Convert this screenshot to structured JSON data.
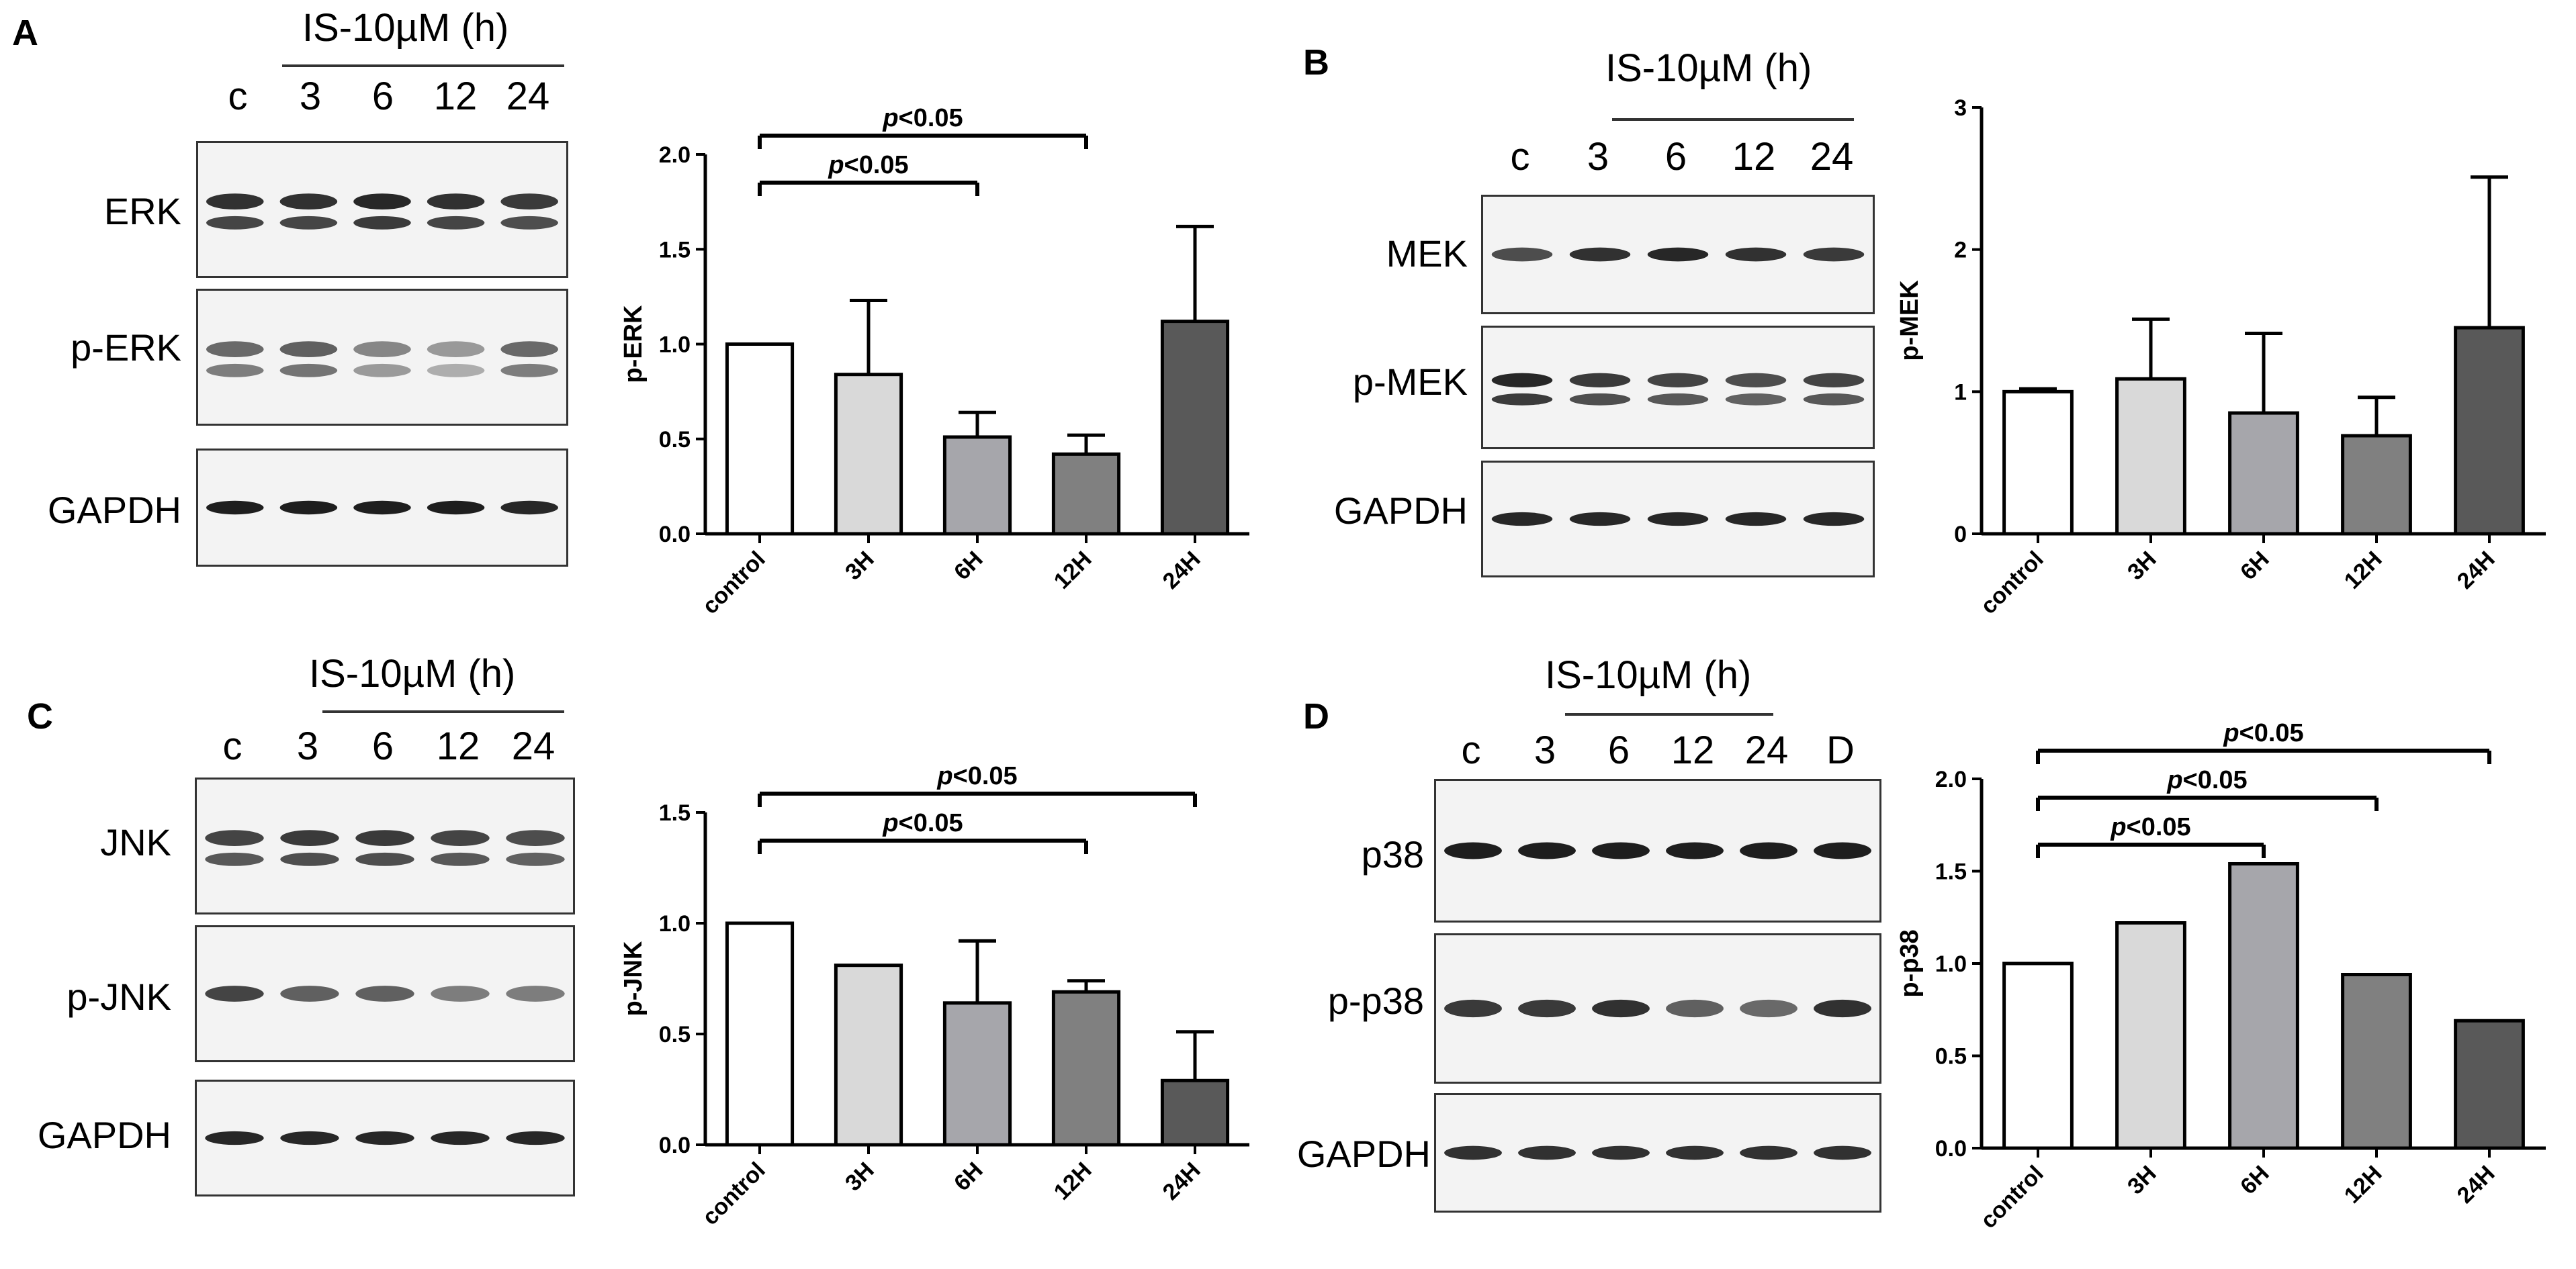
{
  "panels": [
    {
      "id": "A",
      "letter": "A",
      "timepoint_header": "IS-10µM (h)",
      "lanes": [
        "c",
        "3",
        "6",
        "12",
        "24"
      ],
      "blots": [
        {
          "label": "ERK",
          "band_intensity": [
            0.85,
            0.85,
            0.9,
            0.85,
            0.8
          ],
          "doublet": true
        },
        {
          "label": "p-ERK",
          "band_intensity": [
            0.55,
            0.6,
            0.4,
            0.3,
            0.55
          ],
          "doublet": true
        },
        {
          "label": "GAPDH",
          "band_intensity": [
            0.95,
            0.95,
            0.95,
            0.95,
            0.9
          ],
          "doublet": false
        }
      ]
    },
    {
      "id": "B",
      "letter": "B",
      "timepoint_header": "IS-10µM (h)",
      "lanes": [
        "c",
        "3",
        "6",
        "12",
        "24"
      ],
      "blots": [
        {
          "label": "MEK",
          "band_intensity": [
            0.7,
            0.85,
            0.9,
            0.85,
            0.8
          ],
          "doublet": false
        },
        {
          "label": "p-MEK",
          "band_intensity": [
            0.9,
            0.8,
            0.75,
            0.7,
            0.75
          ],
          "doublet": true
        },
        {
          "label": "GAPDH",
          "band_intensity": [
            0.9,
            0.9,
            0.9,
            0.9,
            0.9
          ],
          "doublet": false
        }
      ]
    },
    {
      "id": "C",
      "letter": "C",
      "timepoint_header": "IS-10µM (h)",
      "lanes": [
        "c",
        "3",
        "6",
        "12",
        "24"
      ],
      "blots": [
        {
          "label": "JNK",
          "band_intensity": [
            0.75,
            0.8,
            0.8,
            0.75,
            0.7
          ],
          "doublet": true
        },
        {
          "label": "p-JNK",
          "band_intensity": [
            0.75,
            0.6,
            0.6,
            0.45,
            0.45
          ],
          "doublet": false
        },
        {
          "label": "GAPDH",
          "band_intensity": [
            0.9,
            0.9,
            0.9,
            0.9,
            0.9
          ],
          "doublet": false
        }
      ]
    },
    {
      "id": "D",
      "letter": "D",
      "timepoint_header": "IS-10µM (h)",
      "lanes": [
        "c",
        "3",
        "6",
        "12",
        "24",
        "D"
      ],
      "blots": [
        {
          "label": "p38",
          "band_intensity": [
            0.95,
            0.95,
            0.95,
            0.95,
            0.95,
            0.95
          ],
          "doublet": false
        },
        {
          "label": "p-p38",
          "band_intensity": [
            0.8,
            0.8,
            0.85,
            0.6,
            0.55,
            0.85
          ],
          "doublet": false
        },
        {
          "label": "GAPDH",
          "band_intensity": [
            0.85,
            0.85,
            0.85,
            0.85,
            0.85,
            0.85
          ],
          "doublet": false
        }
      ]
    }
  ],
  "chart_data": [
    {
      "panel": "A",
      "type": "bar",
      "categories": [
        "control",
        "3H",
        "6H",
        "12H",
        "24H"
      ],
      "values": [
        1.0,
        0.84,
        0.51,
        0.42,
        1.12
      ],
      "errors": [
        0,
        0.39,
        0.13,
        0.1,
        0.5
      ],
      "ylabel": "p-ERK",
      "ylim": [
        0,
        2.0
      ],
      "yticks": [
        0.0,
        0.5,
        1.0,
        1.5,
        2.0
      ],
      "tick_decimals": 1,
      "bar_colors": [
        "#ffffff",
        "#d9d9d9",
        "#a6a6ab",
        "#808080",
        "#595959"
      ],
      "significance": [
        {
          "from": 0,
          "to": 3,
          "label": "p<0.05"
        },
        {
          "from": 0,
          "to": 2,
          "label": "p<0.05"
        }
      ]
    },
    {
      "panel": "B",
      "type": "bar",
      "categories": [
        "control",
        "3H",
        "6H",
        "12H",
        "24H"
      ],
      "values": [
        1.0,
        1.09,
        0.85,
        0.69,
        1.45
      ],
      "errors": [
        0.02,
        0.42,
        0.56,
        0.27,
        1.06
      ],
      "ylabel": "p-MEK",
      "ylim": [
        0,
        3
      ],
      "yticks": [
        0,
        1,
        2,
        3
      ],
      "tick_decimals": 0,
      "bar_colors": [
        "#ffffff",
        "#d9d9d9",
        "#a6a6ab",
        "#808080",
        "#595959"
      ],
      "significance": []
    },
    {
      "panel": "C",
      "type": "bar",
      "categories": [
        "control",
        "3H",
        "6H",
        "12H",
        "24H"
      ],
      "values": [
        1.0,
        0.81,
        0.64,
        0.69,
        0.29
      ],
      "errors": [
        0,
        0,
        0.28,
        0.05,
        0.22
      ],
      "ylabel": "p-JNK",
      "ylim": [
        0,
        1.5
      ],
      "yticks": [
        0.0,
        0.5,
        1.0,
        1.5
      ],
      "tick_decimals": 1,
      "bar_colors": [
        "#ffffff",
        "#d9d9d9",
        "#a6a6ab",
        "#808080",
        "#595959"
      ],
      "significance": [
        {
          "from": 0,
          "to": 4,
          "label": "p<0.05"
        },
        {
          "from": 0,
          "to": 3,
          "label": "p<0.05"
        }
      ]
    },
    {
      "panel": "D",
      "type": "bar",
      "categories": [
        "control",
        "3H",
        "6H",
        "12H",
        "24H"
      ],
      "values": [
        1.0,
        1.22,
        1.54,
        0.94,
        0.69
      ],
      "errors": [
        0,
        0,
        0,
        0,
        0
      ],
      "ylabel": "p-p38",
      "ylim": [
        0,
        2.0
      ],
      "yticks": [
        0.0,
        0.5,
        1.0,
        1.5,
        2.0
      ],
      "tick_decimals": 1,
      "bar_colors": [
        "#ffffff",
        "#d9d9d9",
        "#a6a6ab",
        "#808080",
        "#595959"
      ],
      "significance": [
        {
          "from": 0,
          "to": 4,
          "label": "p<0.05"
        },
        {
          "from": 0,
          "to": 3,
          "label": "p<0.05"
        },
        {
          "from": 0,
          "to": 2,
          "label": "p<0.05"
        }
      ]
    }
  ]
}
